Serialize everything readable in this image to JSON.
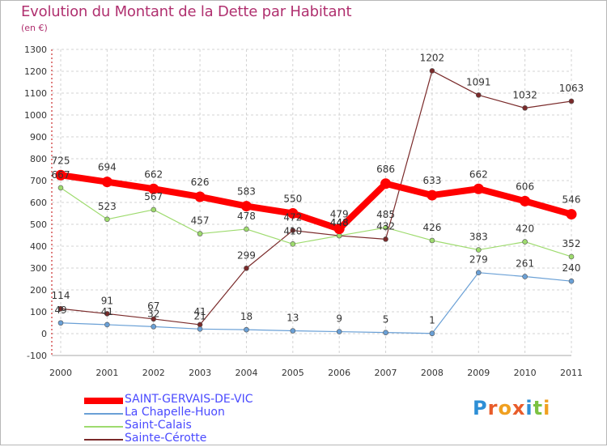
{
  "title": "Evolution du Montant de la Dette par Habitant",
  "unit_label": "(en €)",
  "logo_text": "Proxiti",
  "chart_data": {
    "type": "line",
    "title": "Evolution du Montant de la Dette par Habitant",
    "ylabel": "(en €)",
    "x": [
      "2000",
      "2001",
      "2002",
      "2003",
      "2004",
      "2005",
      "2006",
      "2007",
      "2008",
      "2009",
      "2010",
      "2011"
    ],
    "ylim": [
      -100,
      1300
    ],
    "yticks": [
      "-100",
      "0",
      "100",
      "200",
      "300",
      "400",
      "500",
      "600",
      "700",
      "800",
      "900",
      "1000",
      "1100",
      "1200",
      "1300"
    ],
    "grid": true,
    "legend_position": "bottom-left",
    "series": [
      {
        "name": "SAINT-GERVAIS-DE-VIC",
        "color": "#ff0000",
        "values": [
          725,
          694,
          662,
          626,
          583,
          550,
          479,
          686,
          633,
          662,
          606,
          546
        ],
        "labels": [
          "725",
          "694",
          "662",
          "626",
          "583",
          "550",
          "479",
          "686",
          "633",
          "662",
          "606",
          "546"
        ]
      },
      {
        "name": "La Chapelle-Huon",
        "color": "#6aa0d6",
        "values": [
          49,
          41,
          32,
          21,
          18,
          13,
          9,
          5,
          1,
          279,
          261,
          240
        ],
        "labels": [
          "49",
          "41",
          "32",
          "21",
          "18",
          "13",
          "9",
          "5",
          "1",
          "279",
          "261",
          "240"
        ]
      },
      {
        "name": "Saint-Calais",
        "color": "#9edb6e",
        "values": [
          667,
          523,
          567,
          457,
          478,
          410,
          448,
          485,
          426,
          383,
          420,
          352
        ],
        "labels": [
          "667",
          "523",
          "567",
          "457",
          "478",
          "410",
          "448",
          "485",
          "426",
          "383",
          "420",
          "352"
        ]
      },
      {
        "name": "Sainte-Cérotte",
        "color": "#7a2a2a",
        "values": [
          114,
          91,
          67,
          41,
          299,
          472,
          448,
          432,
          1202,
          1091,
          1032,
          1063
        ],
        "labels": [
          "114",
          "91",
          "67",
          "41",
          "299",
          "472",
          "448",
          "432",
          "1202",
          "1091",
          "1032",
          "1063"
        ]
      }
    ]
  }
}
